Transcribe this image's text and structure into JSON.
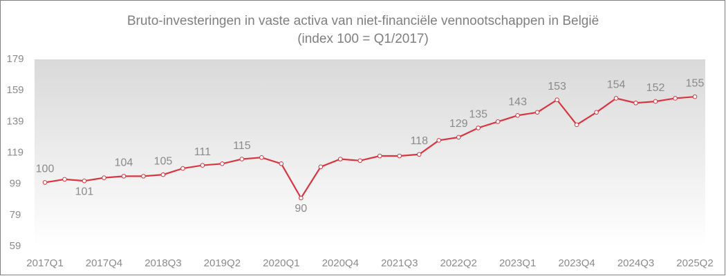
{
  "chart_data": {
    "type": "line",
    "title": "Bruto-investeringen in vaste activa van niet-financiële vennootschappen in België",
    "subtitle": "(index 100 = Q1/2017)",
    "categories": [
      "2017Q1",
      null,
      null,
      "2017Q4",
      null,
      null,
      "2018Q3",
      null,
      null,
      "2019Q2",
      null,
      null,
      "2020Q1",
      null,
      null,
      "2020Q4",
      null,
      null,
      "2021Q3",
      null,
      null,
      "2022Q2",
      null,
      null,
      "2023Q1",
      null,
      null,
      "2023Q4",
      null,
      null,
      "2024Q3",
      null,
      null,
      "2025Q2"
    ],
    "series": [
      {
        "name": "Bruto-investeringen",
        "color": "#d9343f",
        "values": [
          100,
          102,
          101,
          103,
          104,
          104,
          105,
          109,
          111,
          112,
          115,
          116,
          112,
          90,
          110,
          115,
          114,
          117,
          117,
          118,
          127,
          129,
          135,
          139,
          143,
          145,
          153,
          137,
          145,
          154,
          151,
          152,
          154,
          155
        ],
        "value_labels": [
          "100",
          null,
          "101",
          null,
          "104",
          null,
          "105",
          null,
          "111",
          null,
          "115",
          null,
          null,
          "90",
          null,
          null,
          null,
          null,
          null,
          "118",
          null,
          "129",
          "135",
          null,
          "143",
          null,
          "153",
          null,
          null,
          "154",
          null,
          "152",
          null,
          "155"
        ]
      }
    ],
    "ylim": [
      59,
      179
    ],
    "yticks": [
      59,
      79,
      99,
      119,
      139,
      159,
      179
    ]
  }
}
